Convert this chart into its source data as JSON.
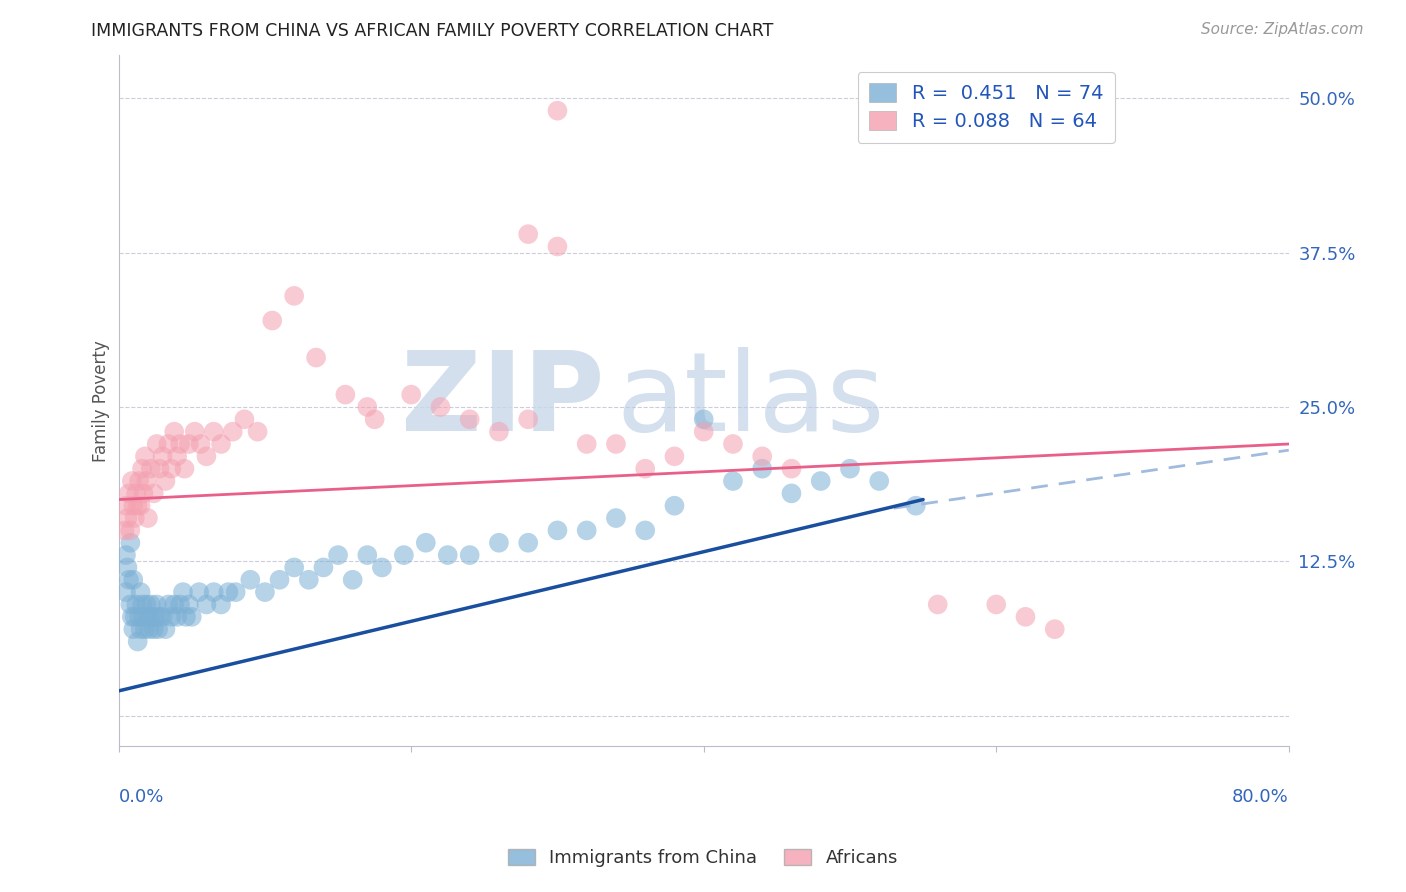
{
  "title": "IMMIGRANTS FROM CHINA VS AFRICAN FAMILY POVERTY CORRELATION CHART",
  "source": "Source: ZipAtlas.com",
  "ylabel": "Family Poverty",
  "xlim": [
    0.0,
    0.8
  ],
  "ylim": [
    -0.025,
    0.535
  ],
  "blue_color": "#7BAFD4",
  "pink_color": "#F4A0B0",
  "blue_line_color": "#1A4FA0",
  "pink_line_color": "#E8608A",
  "dashed_line_color": "#A0BBDD",
  "legend_R_blue": "0.451",
  "legend_N_blue": "74",
  "legend_R_pink": "0.088",
  "legend_N_pink": "64",
  "watermark_zip": "ZIP",
  "watermark_atlas": "atlas",
  "ytick_vals": [
    0.0,
    0.125,
    0.25,
    0.375,
    0.5
  ],
  "ytick_labels": [
    "",
    "12.5%",
    "25.0%",
    "37.5%",
    "50.0%"
  ],
  "xtick_label_left": "0.0%",
  "xtick_label_right": "80.0%",
  "grid_color": "#CCCCDD",
  "bg_color": "#FFFFFF",
  "blue_line_x0": 0.0,
  "blue_line_y0": 0.02,
  "blue_line_x1": 0.55,
  "blue_line_y1": 0.175,
  "dash_line_x0": 0.53,
  "dash_line_y0": 0.168,
  "dash_line_x1": 0.8,
  "dash_line_y1": 0.215,
  "pink_line_x0": 0.0,
  "pink_line_y0": 0.175,
  "pink_line_x1": 0.8,
  "pink_line_y1": 0.22,
  "blue_x": [
    0.005,
    0.008,
    0.009,
    0.01,
    0.01,
    0.011,
    0.012,
    0.013,
    0.014,
    0.015,
    0.015,
    0.016,
    0.017,
    0.018,
    0.019,
    0.02,
    0.021,
    0.022,
    0.023,
    0.024,
    0.025,
    0.026,
    0.027,
    0.028,
    0.03,
    0.032,
    0.034,
    0.036,
    0.038,
    0.04,
    0.042,
    0.044,
    0.046,
    0.048,
    0.05,
    0.055,
    0.06,
    0.065,
    0.07,
    0.075,
    0.08,
    0.09,
    0.1,
    0.11,
    0.12,
    0.13,
    0.14,
    0.15,
    0.16,
    0.17,
    0.18,
    0.195,
    0.21,
    0.225,
    0.24,
    0.26,
    0.28,
    0.3,
    0.32,
    0.34,
    0.36,
    0.38,
    0.4,
    0.42,
    0.44,
    0.46,
    0.48,
    0.5,
    0.52,
    0.545,
    0.005,
    0.006,
    0.007,
    0.008
  ],
  "blue_y": [
    0.1,
    0.09,
    0.08,
    0.07,
    0.11,
    0.08,
    0.09,
    0.06,
    0.08,
    0.07,
    0.1,
    0.09,
    0.08,
    0.07,
    0.09,
    0.08,
    0.07,
    0.09,
    0.08,
    0.07,
    0.08,
    0.09,
    0.07,
    0.08,
    0.08,
    0.07,
    0.09,
    0.08,
    0.09,
    0.08,
    0.09,
    0.1,
    0.08,
    0.09,
    0.08,
    0.1,
    0.09,
    0.1,
    0.09,
    0.1,
    0.1,
    0.11,
    0.1,
    0.11,
    0.12,
    0.11,
    0.12,
    0.13,
    0.11,
    0.13,
    0.12,
    0.13,
    0.14,
    0.13,
    0.13,
    0.14,
    0.14,
    0.15,
    0.15,
    0.16,
    0.15,
    0.17,
    0.24,
    0.19,
    0.2,
    0.18,
    0.19,
    0.2,
    0.19,
    0.17,
    0.13,
    0.12,
    0.11,
    0.14
  ],
  "pink_x": [
    0.004,
    0.005,
    0.006,
    0.007,
    0.008,
    0.009,
    0.01,
    0.011,
    0.012,
    0.013,
    0.014,
    0.015,
    0.016,
    0.017,
    0.018,
    0.019,
    0.02,
    0.022,
    0.024,
    0.026,
    0.028,
    0.03,
    0.032,
    0.034,
    0.036,
    0.038,
    0.04,
    0.042,
    0.045,
    0.048,
    0.052,
    0.056,
    0.06,
    0.065,
    0.07,
    0.078,
    0.086,
    0.095,
    0.105,
    0.12,
    0.135,
    0.155,
    0.175,
    0.2,
    0.22,
    0.24,
    0.26,
    0.28,
    0.3,
    0.32,
    0.34,
    0.36,
    0.38,
    0.4,
    0.42,
    0.44,
    0.46,
    0.3,
    0.28,
    0.17,
    0.56,
    0.6,
    0.62,
    0.64
  ],
  "pink_y": [
    0.15,
    0.17,
    0.16,
    0.18,
    0.15,
    0.19,
    0.17,
    0.16,
    0.18,
    0.17,
    0.19,
    0.17,
    0.2,
    0.18,
    0.21,
    0.19,
    0.16,
    0.2,
    0.18,
    0.22,
    0.2,
    0.21,
    0.19,
    0.22,
    0.2,
    0.23,
    0.21,
    0.22,
    0.2,
    0.22,
    0.23,
    0.22,
    0.21,
    0.23,
    0.22,
    0.23,
    0.24,
    0.23,
    0.32,
    0.34,
    0.29,
    0.26,
    0.24,
    0.26,
    0.25,
    0.24,
    0.23,
    0.24,
    0.38,
    0.22,
    0.22,
    0.2,
    0.21,
    0.23,
    0.22,
    0.21,
    0.2,
    0.49,
    0.39,
    0.25,
    0.09,
    0.09,
    0.08,
    0.07
  ]
}
